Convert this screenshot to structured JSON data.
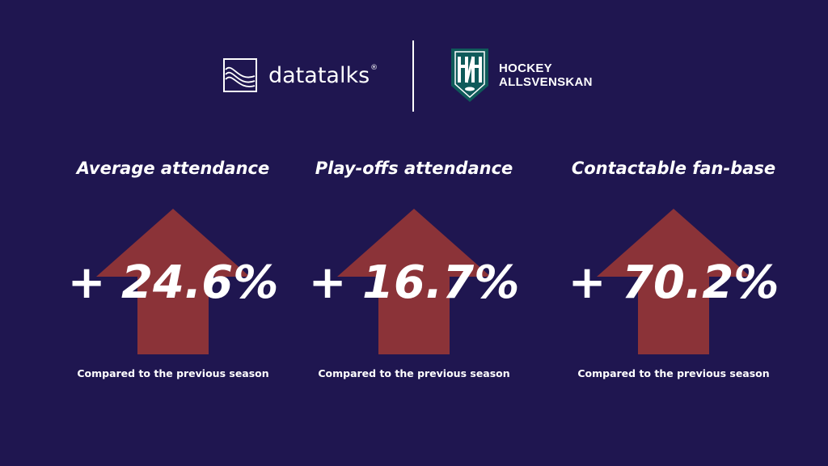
{
  "header": {
    "datatalks_logo": {
      "wordmark": "datatalks",
      "registered_mark": "®",
      "icon": "wave-lines-icon"
    },
    "partner_logo": {
      "line1": "HOCKEY",
      "line2": "ALLSVENSKAN",
      "icon": "hockey-shield-icon",
      "shield_color": "#0f5a5a"
    }
  },
  "colors": {
    "background": "#1f1650",
    "arrow": "#8b3338",
    "text": "#ffffff"
  },
  "stats": [
    {
      "title": "Average attendance",
      "value": "+ 24.6%",
      "note": "Compared to the previous season",
      "icon": "up-arrow-icon"
    },
    {
      "title": "Play-offs attendance",
      "value": "+ 16.7%",
      "note": "Compared to the previous season",
      "icon": "up-arrow-icon"
    },
    {
      "title": "Contactable fan-base",
      "value": "+ 70.2%",
      "note": "Compared to the previous season",
      "icon": "up-arrow-icon"
    }
  ]
}
